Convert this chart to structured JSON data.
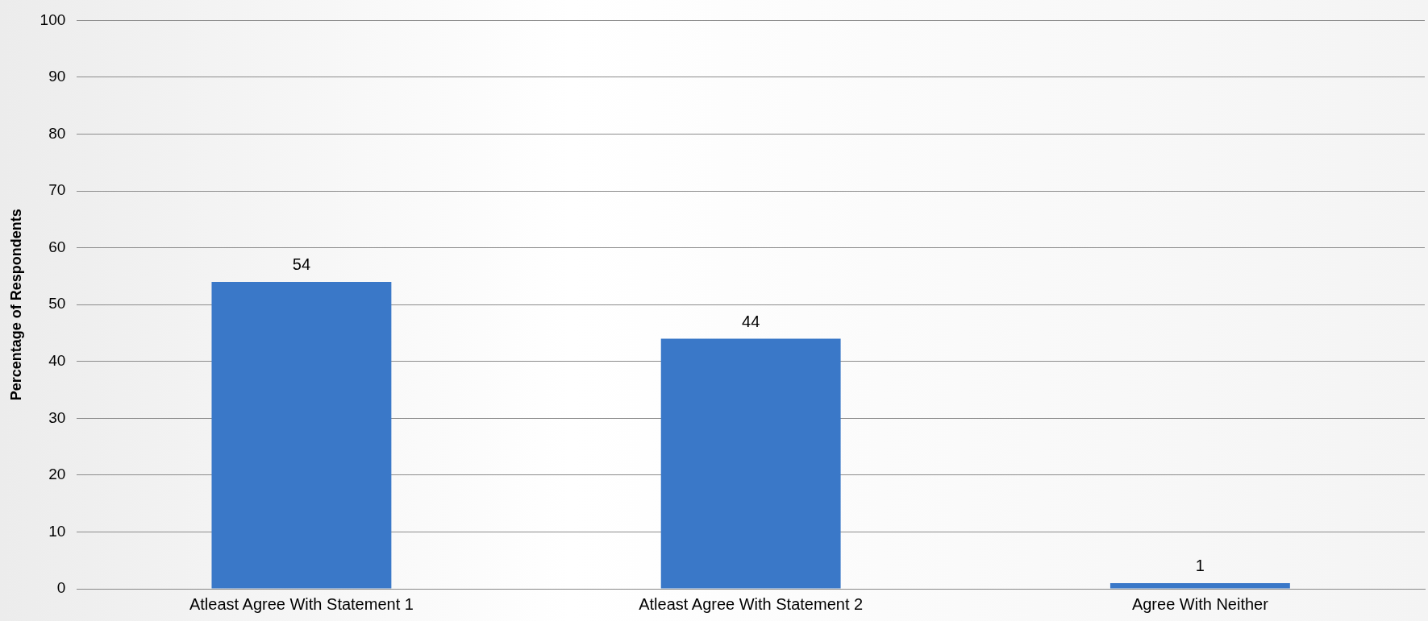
{
  "chart_data": {
    "type": "bar",
    "ylabel": "Percentage of Respondents",
    "categories": [
      "Atleast Agree With Statement 1",
      "Atleast Agree With Statement 2",
      "Agree With Neither"
    ],
    "values": [
      54,
      44,
      1
    ],
    "color": "#3a78c8",
    "ylim": [
      0,
      100
    ],
    "yticks": [
      0,
      10,
      20,
      30,
      40,
      50,
      60,
      70,
      80,
      90,
      100
    ],
    "grid": "y",
    "legend": false,
    "data_labels": true
  }
}
